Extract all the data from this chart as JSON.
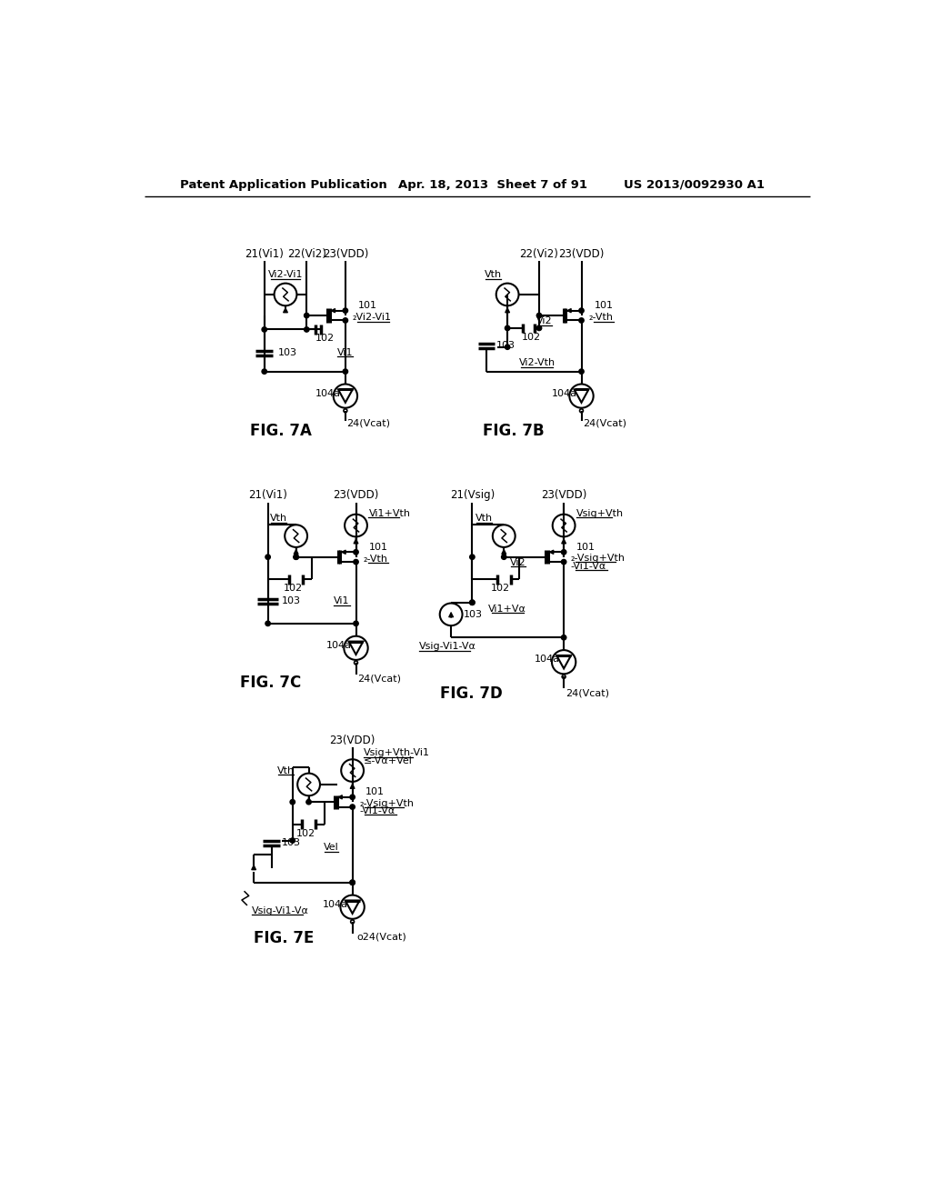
{
  "header_left": "Patent Application Publication",
  "header_mid": "Apr. 18, 2013  Sheet 7 of 91",
  "header_right": "US 2013/0092930 A1",
  "bg": "#ffffff"
}
